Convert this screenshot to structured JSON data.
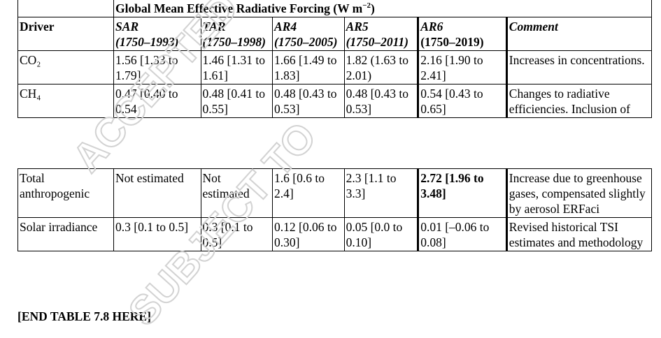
{
  "table": {
    "group_header": "Global Mean Effective Radiative Forcing (W m",
    "group_header_sup": "−2",
    "group_header_close": ")",
    "columns": [
      {
        "name": "Driver",
        "period": ""
      },
      {
        "name": "SAR",
        "period": "(1750–1993)"
      },
      {
        "name": "TAR",
        "period": "(1750–1998)"
      },
      {
        "name": "AR4",
        "period": "(1750–2005)"
      },
      {
        "name": "AR5",
        "period": "(1750–2011)"
      },
      {
        "name": "AR6",
        "period": "(1750–2019)"
      },
      {
        "name": "Comment",
        "period": ""
      }
    ],
    "rows_top": [
      {
        "driver": "CO₂",
        "sar": "1.56 [1.33 to 1.79]",
        "tar": "1.46 [1.31 to 1.61]",
        "ar4": "1.66 [1.49 to 1.83]",
        "ar5": "1.82 (1.63 to 2.01)",
        "ar6": "2.16 [1.90 to 2.41]",
        "comment": "Increases in concentrations."
      },
      {
        "driver": "CH₄",
        "sar": "0.47 [0.40 to 0.54",
        "tar": "0.48 [0.41 to 0.55]",
        "ar4": "0.48 [0.43 to 0.53]",
        "ar5": "0.48 [0.43 to 0.53]",
        "ar6": "0.54 [0.43 to 0.65]",
        "comment": "Changes to radiative efficiencies. Inclusion of"
      }
    ],
    "rows_bottom": [
      {
        "driver": "Total anthropogenic",
        "sar": "Not estimated",
        "tar": "Not estimated",
        "ar4": "1.6 [0.6 to 2.4]",
        "ar5": "2.3 [1.1 to 3.3]",
        "ar6": "2.72 [1.96 to 3.48]",
        "comment": "Increase due to greenhouse gases, compensated slightly by aerosol ERFaci"
      },
      {
        "driver": "Solar irradiance",
        "sar": "0.3 [0.1 to 0.5]",
        "tar": "0.3 [0.1 to 0.5]",
        "ar4": "0.12 [0.06 to 0.30]",
        "ar5": "0.05 [0.0 to 0.10]",
        "ar6": "0.01 [–0.06 to 0.08]",
        "comment": "Revised historical TSI estimates and methodology"
      }
    ]
  },
  "footer": "[END TABLE 7.8 HERE]",
  "watermark": {
    "line1": "ACCEPTED",
    "line2": "SUBJECT TO"
  }
}
